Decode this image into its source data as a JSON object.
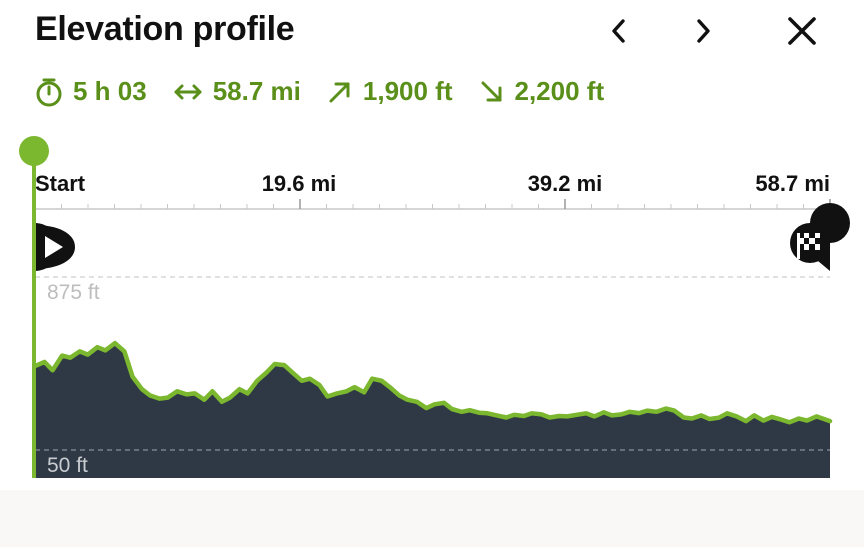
{
  "header": {
    "title": "Elevation profile",
    "prev_icon": "chevron-left-icon",
    "next_icon": "chevron-right-icon",
    "close_icon": "close-icon"
  },
  "stats": {
    "duration": "5 h 03",
    "distance": "58.7 mi",
    "ascent": "1,900 ft",
    "descent": "2,200 ft"
  },
  "colors": {
    "accent": "#5a8f1a",
    "line": "#7cb82f",
    "fill": "#2f3945"
  },
  "chart_data": {
    "type": "area",
    "x_ticks": [
      "Start",
      "19.6 mi",
      "39.2 mi",
      "58.7 mi"
    ],
    "y_refs": [
      "875 ft",
      "50 ft"
    ],
    "start_icon": "start-play-marker-icon",
    "finish_icon": "finish-flag-marker-icon",
    "xlim": [
      0,
      58.7
    ],
    "ylim": [
      50,
      875
    ],
    "x": [
      0,
      0.7,
      1.3,
      2.0,
      2.6,
      3.3,
      3.9,
      4.6,
      5.2,
      5.9,
      6.6,
      7.2,
      7.9,
      8.5,
      9.2,
      9.8,
      10.5,
      11.2,
      11.8,
      12.5,
      13.1,
      13.8,
      14.4,
      15.1,
      15.7,
      16.4,
      17.1,
      17.7,
      18.4,
      19.0,
      19.7,
      20.3,
      21.0,
      21.6,
      22.3,
      23.0,
      23.6,
      24.3,
      24.9,
      25.6,
      26.2,
      26.9,
      27.5,
      28.2,
      28.9,
      29.5,
      30.2,
      30.8,
      31.5,
      32.1,
      32.8,
      33.4,
      34.1,
      34.8,
      35.4,
      36.1,
      36.7,
      37.4,
      38.0,
      38.7,
      39.3,
      40.0,
      40.7,
      41.3,
      42.0,
      42.6,
      43.3,
      43.9,
      44.6,
      45.2,
      45.9,
      46.6,
      47.2,
      47.9,
      48.5,
      49.2,
      49.8,
      50.5,
      51.1,
      51.8,
      52.5,
      53.1,
      53.8,
      54.4,
      55.1,
      55.7,
      56.4,
      57.0,
      57.7,
      58.7
    ],
    "y": [
      450,
      470,
      430,
      500,
      490,
      520,
      505,
      540,
      525,
      560,
      520,
      400,
      340,
      310,
      295,
      300,
      330,
      315,
      320,
      290,
      330,
      280,
      300,
      340,
      320,
      380,
      420,
      460,
      455,
      420,
      380,
      390,
      360,
      305,
      320,
      330,
      350,
      325,
      390,
      380,
      350,
      310,
      290,
      280,
      250,
      268,
      275,
      245,
      232,
      240,
      228,
      225,
      215,
      205,
      218,
      212,
      225,
      220,
      205,
      212,
      210,
      218,
      225,
      210,
      230,
      215,
      220,
      232,
      226,
      238,
      232,
      248,
      238,
      205,
      200,
      215,
      198,
      204,
      225,
      210,
      188,
      215,
      190,
      208,
      195,
      182,
      200,
      190,
      210,
      188
    ]
  }
}
